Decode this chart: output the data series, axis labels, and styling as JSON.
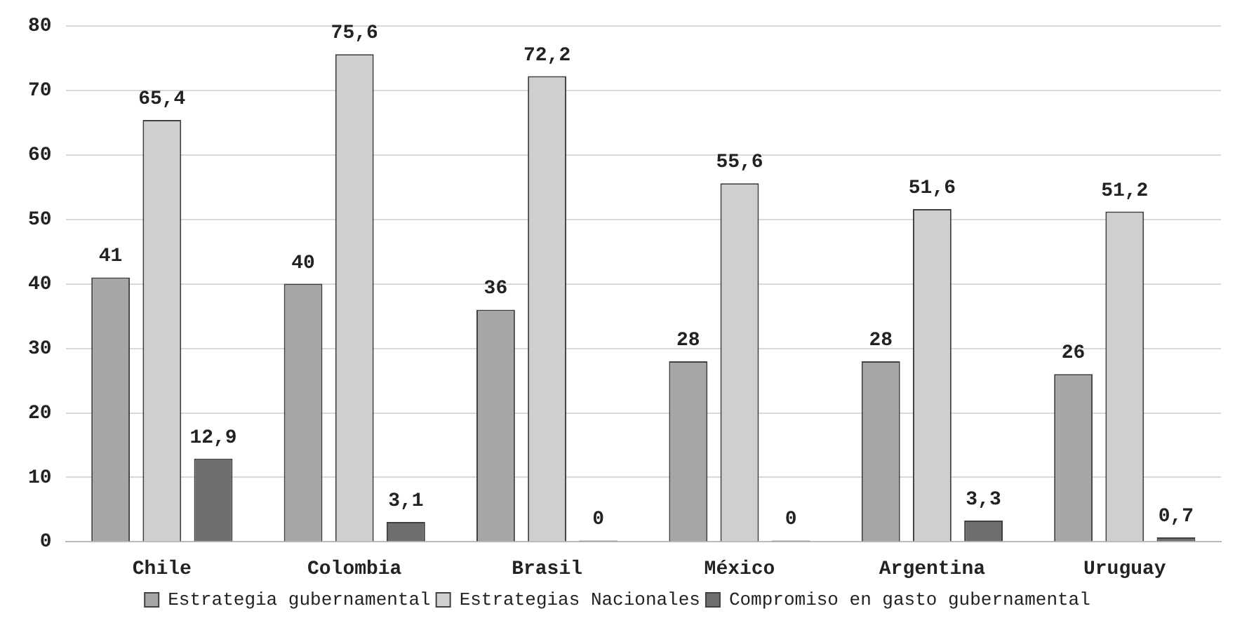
{
  "chart_data": {
    "type": "bar",
    "categories": [
      "Chile",
      "Colombia",
      "Brasil",
      "México",
      "Argentina",
      "Uruguay"
    ],
    "series": [
      {
        "name": "Estrategia gubernamental",
        "color": "#a6a6a6",
        "values": [
          41,
          40,
          36,
          28,
          28,
          26
        ],
        "value_labels": [
          "41",
          "40",
          "36",
          "28",
          "28",
          "26"
        ]
      },
      {
        "name": "Estrategias Nacionales",
        "color": "#cfcfcf",
        "values": [
          65.4,
          75.6,
          72.2,
          55.6,
          51.6,
          51.2
        ],
        "value_labels": [
          "65,4",
          "75,6",
          "72,2",
          "55,6",
          "51,6",
          "51,2"
        ]
      },
      {
        "name": "Compromiso en gasto gubernamental",
        "color": "#6e6e6e",
        "values": [
          12.9,
          3.1,
          0,
          0,
          3.3,
          0.7
        ],
        "value_labels": [
          "12,9",
          "3,1",
          "0",
          "0",
          "3,3",
          "0,7"
        ]
      }
    ],
    "ylim": [
      0,
      80
    ],
    "yticks": [
      0,
      10,
      20,
      30,
      40,
      50,
      60,
      70,
      80
    ],
    "grid": "y",
    "legend": "bottom"
  }
}
